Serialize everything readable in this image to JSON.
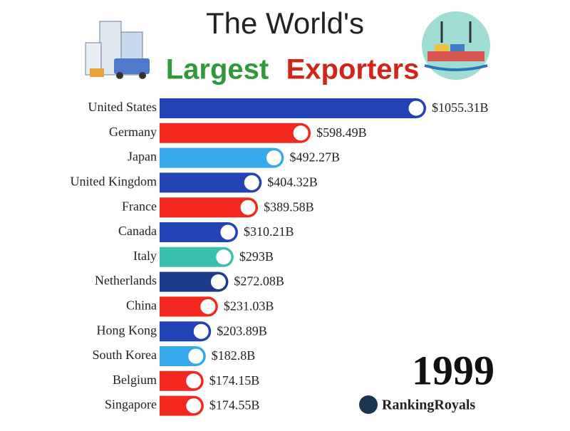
{
  "chart_data": {
    "type": "bar",
    "orientation": "horizontal",
    "title": "The World's",
    "title_highlight": [
      "Largest",
      "Exporters"
    ],
    "categories": [
      "United States",
      "Germany",
      "Japan",
      "United Kingdom",
      "France",
      "Canada",
      "Italy",
      "Netherlands",
      "China",
      "Hong Kong",
      "South Korea",
      "Belgium",
      "Singapore"
    ],
    "values": [
      1055.31,
      598.49,
      492.27,
      404.32,
      389.58,
      310.21,
      293,
      272.08,
      231.03,
      203.89,
      182.8,
      174.15,
      174.55
    ],
    "value_labels": [
      "$1055.31B",
      "$598.49B",
      "$492.27B",
      "$404.32B",
      "$389.58B",
      "$310.21B",
      "$293B",
      "$272.08B",
      "$231.03B",
      "$203.89B",
      "$182.8B",
      "$174.15B",
      "$174.55B"
    ],
    "colors": [
      "#2342b4",
      "#f2281e",
      "#36a8ec",
      "#2342b4",
      "#f2281e",
      "#2342b4",
      "#3cc0ae",
      "#1b3a8c",
      "#f2281e",
      "#2342b4",
      "#36a8ec",
      "#f2281e",
      "#f2281e"
    ],
    "year": "1999",
    "brand": "RankingRoyals"
  }
}
